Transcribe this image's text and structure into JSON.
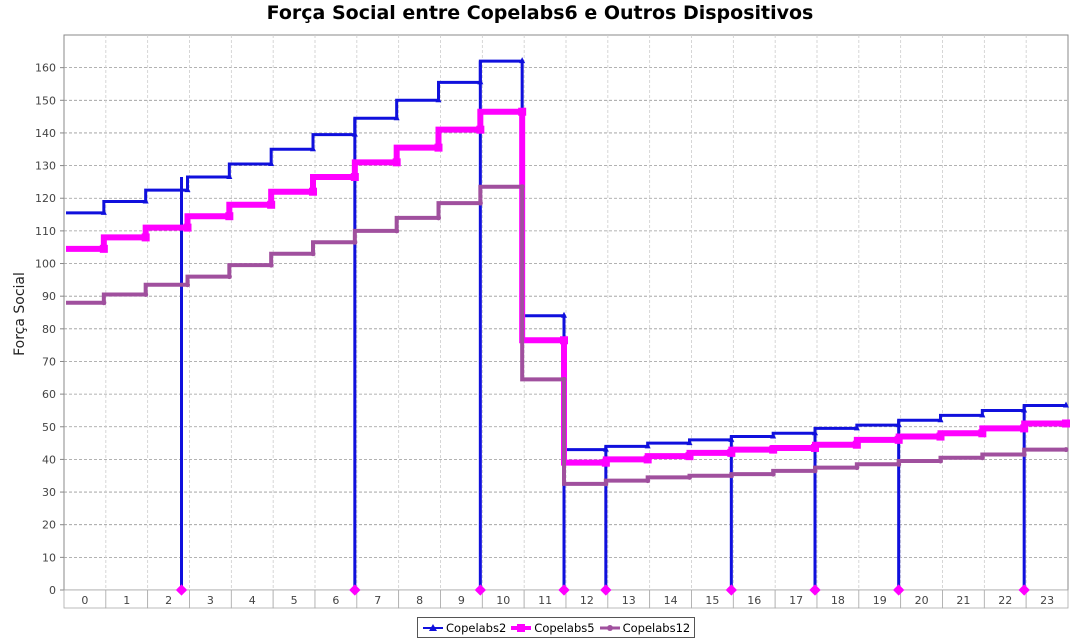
{
  "chart_data": {
    "type": "line",
    "title": "Força Social entre Copelabs6 e Outros Dispositivos",
    "xlabel": "",
    "ylabel": "Força Social",
    "categories": [
      "0",
      "1",
      "2",
      "3",
      "4",
      "5",
      "6",
      "7",
      "8",
      "9",
      "10",
      "11",
      "12",
      "13",
      "14",
      "15",
      "16",
      "17",
      "18",
      "19",
      "20",
      "21",
      "22",
      "23"
    ],
    "ylim": [
      0,
      170
    ],
    "yticks": [
      0,
      10,
      20,
      30,
      40,
      50,
      60,
      70,
      80,
      90,
      100,
      110,
      120,
      130,
      140,
      150,
      160
    ],
    "grid": true,
    "legend_position": "bottom",
    "series": [
      {
        "name": "Copelabs2",
        "color": "#1010dd",
        "values": [
          115.5,
          119,
          122.5,
          126.5,
          130.5,
          135,
          139.5,
          144.5,
          150,
          155.5,
          162,
          84,
          43,
          44,
          45,
          46,
          47,
          48,
          49.5,
          50.5,
          52,
          53.5,
          55,
          56.5
        ],
        "drops_to_zero_after": [
          2,
          6,
          9,
          11,
          12,
          15,
          17,
          19,
          22
        ]
      },
      {
        "name": "Copelabs5",
        "color": "#ff00ff",
        "values": [
          104.5,
          108,
          111,
          114.5,
          118,
          122,
          126.5,
          131,
          135.5,
          141,
          146.5,
          76.5,
          39,
          40,
          41,
          42,
          43,
          43.5,
          44.5,
          46,
          47,
          48,
          49.5,
          51
        ],
        "drops_to_zero_after": []
      },
      {
        "name": "Copelabs12",
        "color": "#a0509e",
        "values": [
          88,
          90.5,
          93.5,
          96,
          99.5,
          103,
          106.5,
          110,
          114,
          118.5,
          123.5,
          64.5,
          32.5,
          33.5,
          34.5,
          35,
          35.5,
          36.5,
          37.5,
          38.5,
          39.5,
          40.5,
          41.5,
          43
        ],
        "drops_to_zero_after": []
      }
    ],
    "zero_markers_after_category": [
      2,
      6,
      9,
      11,
      12,
      15,
      17,
      19,
      22
    ]
  }
}
